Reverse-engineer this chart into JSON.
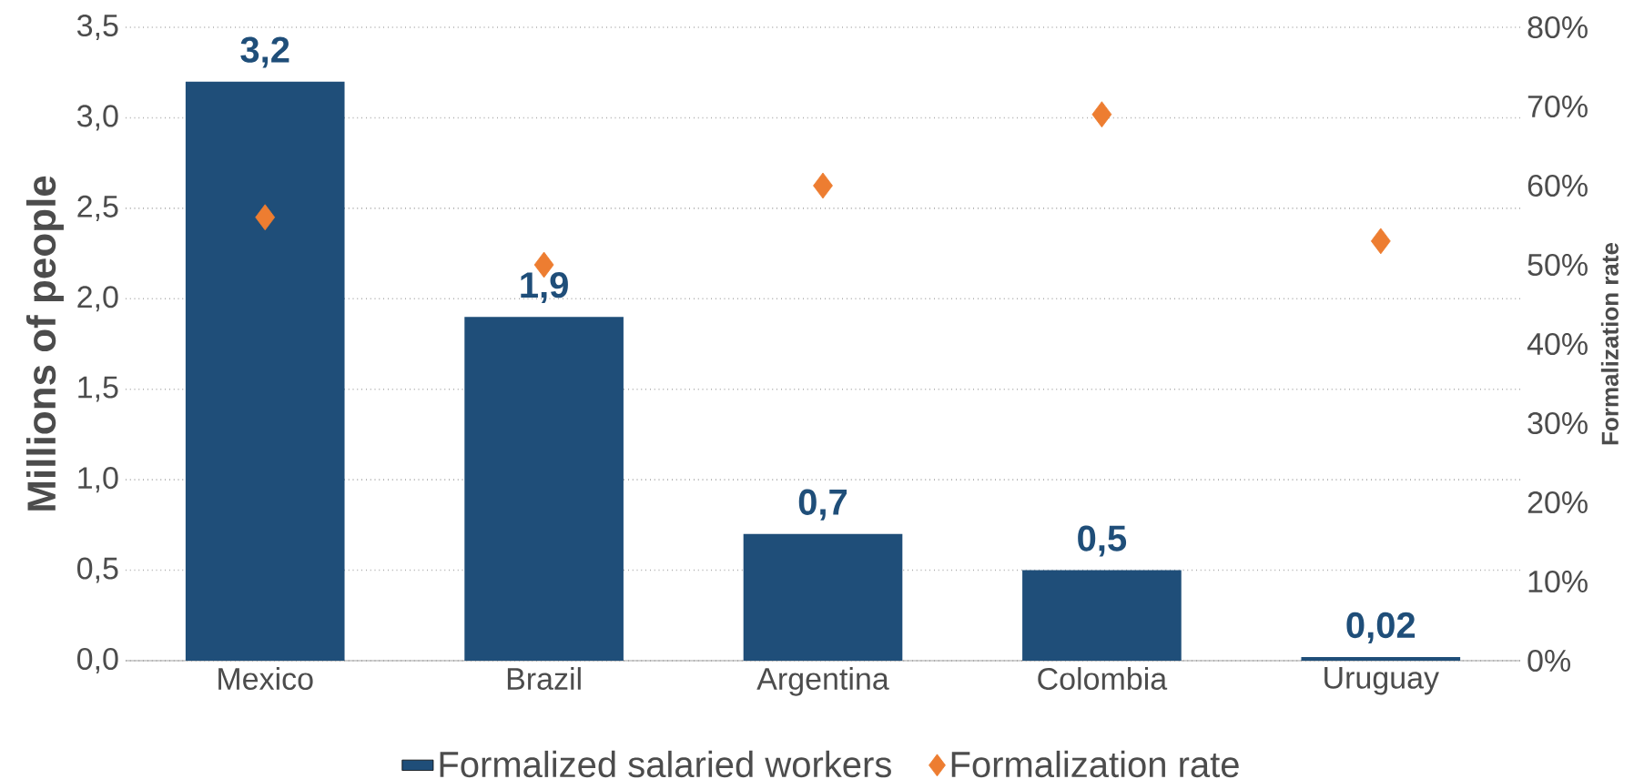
{
  "chart_data": {
    "type": "bar",
    "categories": [
      "Mexico",
      "Brazil",
      "Argentina",
      "Colombia",
      "Uruguay"
    ],
    "ylabel": "Millions of people",
    "y2label": "Formalization rate",
    "series": [
      {
        "name": "Formalized salaried workers",
        "color": "#1f4e79",
        "values": [
          3.2,
          1.9,
          0.7,
          0.5,
          0.02
        ],
        "value_labels": [
          "3,2",
          "1,9",
          "0,7",
          "0,5",
          "0,02"
        ]
      },
      {
        "name": "Formalization rate",
        "type": "scatter",
        "axis": "y2",
        "marker": "diamond",
        "color": "#ed7d31",
        "values": [
          56,
          50,
          60,
          69,
          53
        ]
      }
    ],
    "ylim": [
      0,
      3.5
    ],
    "yticks": [
      {
        "value": 0,
        "label": "0,0"
      },
      {
        "value": 0.5,
        "label": "0,5"
      },
      {
        "value": 1,
        "label": "1,0"
      },
      {
        "value": 1.5,
        "label": "1,5"
      },
      {
        "value": 2,
        "label": "2,0"
      },
      {
        "value": 2.5,
        "label": "2,5"
      },
      {
        "value": 3,
        "label": "3,0"
      },
      {
        "value": 3.5,
        "label": "3,5"
      }
    ],
    "y2lim": [
      0,
      80
    ],
    "y2ticks": [
      {
        "value": 0,
        "label": "0%"
      },
      {
        "value": 10,
        "label": "10%"
      },
      {
        "value": 20,
        "label": "20%"
      },
      {
        "value": 30,
        "label": "30%"
      },
      {
        "value": 40,
        "label": "40%"
      },
      {
        "value": 50,
        "label": "50%"
      },
      {
        "value": 60,
        "label": "60%"
      },
      {
        "value": 70,
        "label": "70%"
      },
      {
        "value": 80,
        "label": "80%"
      }
    ],
    "grid": "y",
    "legend": "bottom"
  }
}
